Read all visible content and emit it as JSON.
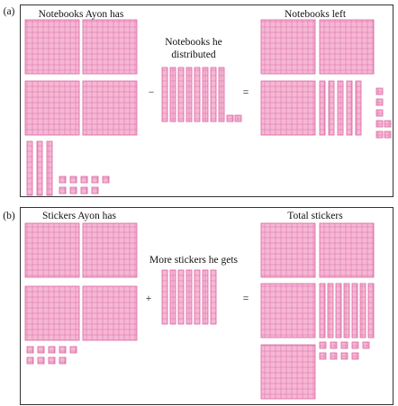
{
  "panels": [
    {
      "tag": "(a)",
      "operator": "−",
      "equals": "=",
      "groups": [
        {
          "label": "Notebooks Ayon has",
          "hundreds": 4,
          "tens": 3,
          "ones": 9
        },
        {
          "label": "Notebooks he distributed",
          "tens": 8,
          "ones": 2
        },
        {
          "label": "Notebooks left",
          "hundreds": 3,
          "tens": 5,
          "ones": 7
        }
      ]
    },
    {
      "tag": "(b)",
      "operator": "+",
      "equals": "=",
      "groups": [
        {
          "label": "Stickers Ayon has",
          "hundreds": 4,
          "ones": 9
        },
        {
          "label": "More stickers he gets",
          "tens": 7
        },
        {
          "label": "Total stickers",
          "hundreds": 4,
          "tens": 7,
          "ones": 9
        }
      ]
    }
  ]
}
